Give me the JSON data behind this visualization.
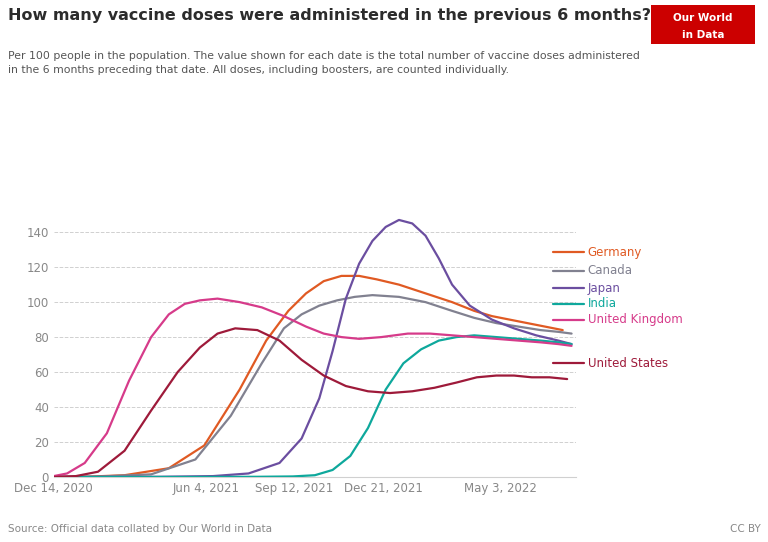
{
  "title": "How many vaccine doses were administered in the previous 6 months?",
  "subtitle": "Per 100 people in the population. The value shown for each date is the total number of vaccine doses administered\nin the 6 months preceding that date. All doses, including boosters, are counted individually.",
  "source": "Source: Official data collated by Our World in Data",
  "cc": "CC BY",
  "logo_text1": "Our World",
  "logo_text2": "in Data",
  "background_color": "#ffffff",
  "grid_color": "#d0d0d0",
  "title_color": "#2c2c2c",
  "subtitle_color": "#555555",
  "tick_color": "#888888",
  "series": {
    "Germany": {
      "color": "#e05a23",
      "points": [
        [
          0,
          0
        ],
        [
          40,
          0.2
        ],
        [
          80,
          1
        ],
        [
          130,
          5
        ],
        [
          170,
          18
        ],
        [
          210,
          50
        ],
        [
          240,
          78
        ],
        [
          265,
          95
        ],
        [
          285,
          105
        ],
        [
          305,
          112
        ],
        [
          325,
          115
        ],
        [
          345,
          115
        ],
        [
          365,
          113
        ],
        [
          390,
          110
        ],
        [
          420,
          105
        ],
        [
          450,
          100
        ],
        [
          475,
          95
        ],
        [
          495,
          92
        ],
        [
          515,
          90
        ],
        [
          535,
          88
        ],
        [
          555,
          86
        ],
        [
          575,
          84
        ]
      ]
    },
    "Canada": {
      "color": "#818190",
      "points": [
        [
          0,
          0
        ],
        [
          50,
          0.2
        ],
        [
          110,
          1.5
        ],
        [
          160,
          10
        ],
        [
          200,
          35
        ],
        [
          235,
          65
        ],
        [
          260,
          85
        ],
        [
          280,
          93
        ],
        [
          300,
          98
        ],
        [
          320,
          101
        ],
        [
          340,
          103
        ],
        [
          360,
          104
        ],
        [
          390,
          103
        ],
        [
          420,
          100
        ],
        [
          450,
          95
        ],
        [
          475,
          91
        ],
        [
          500,
          88
        ],
        [
          525,
          86
        ],
        [
          550,
          84
        ],
        [
          570,
          83
        ],
        [
          585,
          82
        ]
      ]
    },
    "Japan": {
      "color": "#6b4ea0",
      "points": [
        [
          0,
          0
        ],
        [
          120,
          0.1
        ],
        [
          180,
          0.5
        ],
        [
          220,
          2
        ],
        [
          255,
          8
        ],
        [
          280,
          22
        ],
        [
          300,
          45
        ],
        [
          315,
          72
        ],
        [
          330,
          102
        ],
        [
          345,
          122
        ],
        [
          360,
          135
        ],
        [
          375,
          143
        ],
        [
          390,
          147
        ],
        [
          405,
          145
        ],
        [
          420,
          138
        ],
        [
          435,
          125
        ],
        [
          450,
          110
        ],
        [
          470,
          98
        ],
        [
          495,
          90
        ],
        [
          520,
          85
        ],
        [
          545,
          81
        ],
        [
          570,
          78
        ],
        [
          585,
          76
        ]
      ]
    },
    "India": {
      "color": "#0ea89c",
      "points": [
        [
          0,
          0
        ],
        [
          150,
          0
        ],
        [
          230,
          0.1
        ],
        [
          270,
          0.3
        ],
        [
          295,
          1
        ],
        [
          315,
          4
        ],
        [
          335,
          12
        ],
        [
          355,
          28
        ],
        [
          375,
          50
        ],
        [
          395,
          65
        ],
        [
          415,
          73
        ],
        [
          435,
          78
        ],
        [
          455,
          80
        ],
        [
          475,
          81
        ],
        [
          500,
          80
        ],
        [
          525,
          79
        ],
        [
          550,
          78
        ],
        [
          570,
          77
        ],
        [
          585,
          76
        ]
      ]
    },
    "United Kingdom": {
      "color": "#d63b8a",
      "points": [
        [
          0,
          0.5
        ],
        [
          15,
          2
        ],
        [
          35,
          8
        ],
        [
          60,
          25
        ],
        [
          85,
          55
        ],
        [
          110,
          80
        ],
        [
          130,
          93
        ],
        [
          148,
          99
        ],
        [
          165,
          101
        ],
        [
          185,
          102
        ],
        [
          210,
          100
        ],
        [
          235,
          97
        ],
        [
          260,
          92
        ],
        [
          285,
          86
        ],
        [
          305,
          82
        ],
        [
          325,
          80
        ],
        [
          345,
          79
        ],
        [
          370,
          80
        ],
        [
          400,
          82
        ],
        [
          425,
          82
        ],
        [
          450,
          81
        ],
        [
          475,
          80
        ],
        [
          500,
          79
        ],
        [
          525,
          78
        ],
        [
          550,
          77
        ],
        [
          570,
          76
        ],
        [
          585,
          75
        ]
      ]
    },
    "United States": {
      "color": "#9e1a3a",
      "points": [
        [
          0,
          0
        ],
        [
          25,
          0.5
        ],
        [
          50,
          3
        ],
        [
          80,
          15
        ],
        [
          110,
          38
        ],
        [
          140,
          60
        ],
        [
          165,
          74
        ],
        [
          185,
          82
        ],
        [
          205,
          85
        ],
        [
          230,
          84
        ],
        [
          255,
          78
        ],
        [
          280,
          67
        ],
        [
          305,
          58
        ],
        [
          330,
          52
        ],
        [
          355,
          49
        ],
        [
          380,
          48
        ],
        [
          405,
          49
        ],
        [
          430,
          51
        ],
        [
          455,
          54
        ],
        [
          478,
          57
        ],
        [
          500,
          58
        ],
        [
          520,
          58
        ],
        [
          540,
          57
        ],
        [
          560,
          57
        ],
        [
          580,
          56
        ]
      ]
    }
  },
  "x_tick_days": [
    0,
    172,
    271,
    372,
    505
  ],
  "x_tick_labels": [
    "Dec 14, 2020",
    "Jun 4, 2021",
    "Sep 12, 2021",
    "Dec 21, 2021",
    "May 3, 2022"
  ],
  "y_ticks": [
    0,
    20,
    40,
    60,
    80,
    100,
    120,
    140
  ],
  "x_max": 590,
  "y_max": 155,
  "legend_order": [
    "Germany",
    "Canada",
    "Japan",
    "India",
    "United Kingdom",
    "United States"
  ]
}
